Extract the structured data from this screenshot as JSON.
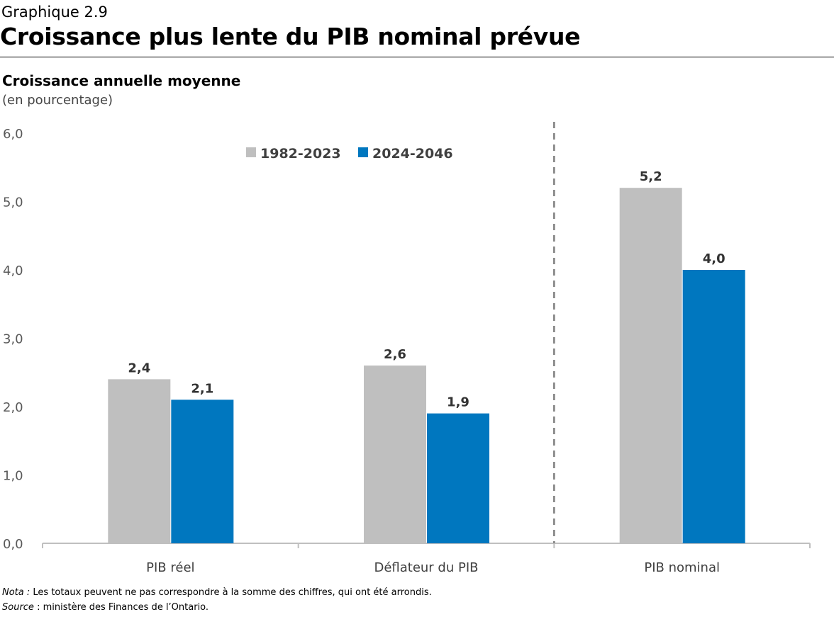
{
  "header": {
    "eyebrow": "Graphique 2.9",
    "title": "Croissance plus lente du PIB nominal prévue",
    "subtitle": "Croissance annuelle moyenne",
    "unit": "(en pourcentage)"
  },
  "colors": {
    "series1": "#bfbfbf",
    "series2": "#0077bf",
    "axis": "#bfbfbf",
    "divider": "#7f7f7f"
  },
  "chart_data": {
    "type": "bar",
    "title": "Croissance plus lente du PIB nominal prévue",
    "ylabel": "Croissance annuelle moyenne (en pourcentage)",
    "xlabel": "",
    "categories": [
      "PIB réel",
      "Déflateur du PIB",
      "PIB nominal"
    ],
    "series": [
      {
        "name": "1982-2023",
        "values": [
          2.4,
          2.6,
          5.2
        ],
        "labels": [
          "2,4",
          "2,6",
          "5,2"
        ]
      },
      {
        "name": "2024-2046",
        "values": [
          2.1,
          1.9,
          4.0
        ],
        "labels": [
          "2,1",
          "1,9",
          "4,0"
        ]
      }
    ],
    "ylim": [
      0,
      6
    ],
    "yticks": [
      0,
      1,
      2,
      3,
      4,
      5,
      6
    ],
    "ytick_labels": [
      "0,0",
      "1,0",
      "2,0",
      "3,0",
      "4,0",
      "5,0",
      "6,0"
    ],
    "grid": false,
    "legend": "top-center",
    "annotations": [
      "dashed vertical divider between Déflateur du PIB and PIB nominal"
    ]
  },
  "footnotes": {
    "note_label": "Nota :",
    "note_text": " Les totaux peuvent ne pas correspondre à la somme des chiffres, qui ont été arrondis.",
    "source_label": "Source",
    "source_text": " : ministère des Finances de l’Ontario."
  }
}
